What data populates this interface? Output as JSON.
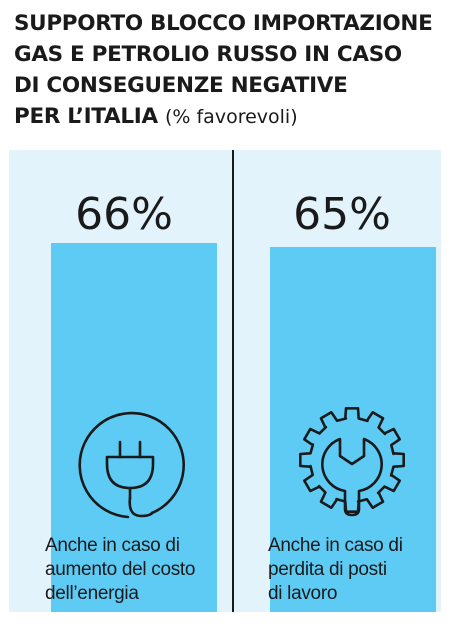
{
  "title": {
    "lines": [
      "SUPPORTO BLOCCO IMPORTAZIONE",
      "GAS E PETROLIO RUSSO IN CASO",
      "DI CONSEGUENZE NEGATIVE",
      "PER L’ITALIA"
    ],
    "unit": "(% favorevoli)"
  },
  "colors": {
    "bar": "#5dcbf4",
    "panel": "#e2f3fc",
    "text": "#1a1a1a"
  },
  "chart_data": {
    "type": "bar",
    "categories": [
      "Anche in caso di aumento del costo dell’energia",
      "Anche in caso di perdita di posti di lavoro"
    ],
    "values": [
      66,
      65
    ],
    "value_labels": [
      "66%",
      "65%"
    ],
    "ylabel": "% favorevoli",
    "ylim": [
      0,
      100
    ]
  },
  "items": [
    {
      "value_label": "66%",
      "label_lines": [
        "Anche in caso di",
        "aumento del costo",
        "dell’energia"
      ],
      "icon": "plug-icon"
    },
    {
      "value_label": "65%",
      "label_lines": [
        "Anche in caso di",
        "perdita di posti",
        "di lavoro"
      ],
      "icon": "gear-wrench-icon"
    }
  ]
}
